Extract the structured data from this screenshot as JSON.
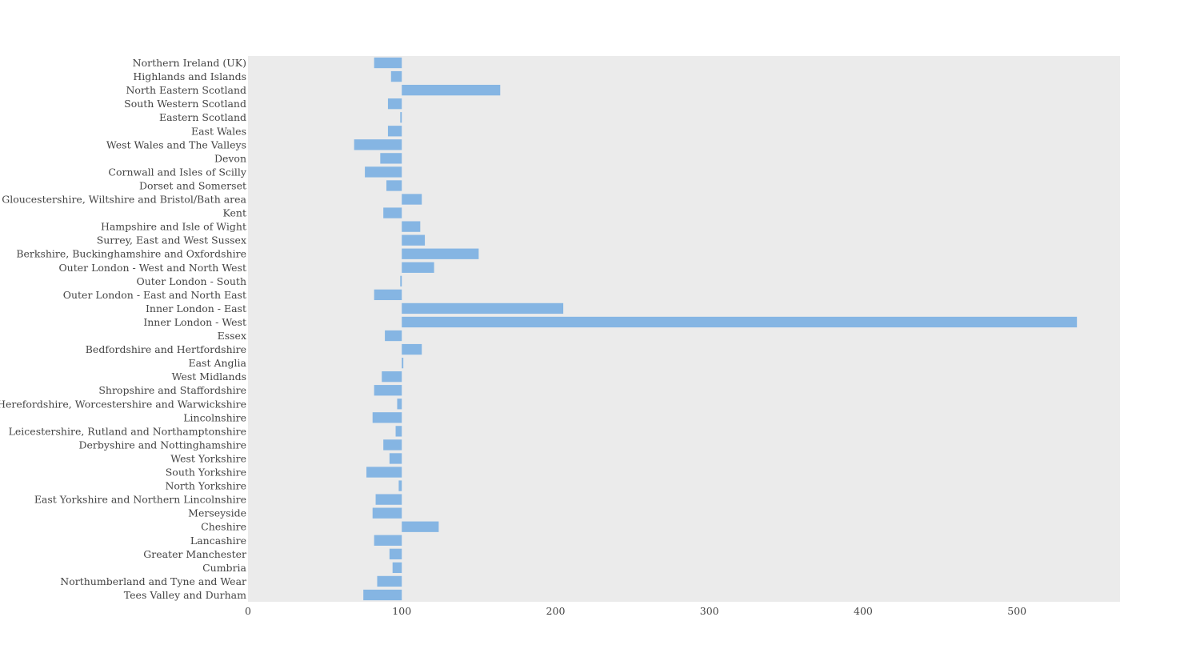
{
  "chart_data": {
    "type": "bar",
    "orientation": "horizontal",
    "title": "",
    "xlabel": "",
    "ylabel": "",
    "baseline": 100,
    "xlim": [
      0,
      567
    ],
    "xticks": [
      0,
      100,
      200,
      300,
      400,
      500
    ],
    "grid": false,
    "legend": "none",
    "colors": {
      "bar": "#85b5e3",
      "plot_background": "#ebebeb",
      "text": "#444444"
    },
    "categories": [
      "Northern Ireland (UK)",
      "Highlands and Islands",
      "North Eastern Scotland",
      "South Western Scotland",
      "Eastern Scotland",
      "East Wales",
      "West Wales and The Valleys",
      "Devon",
      "Cornwall and Isles of Scilly",
      "Dorset and Somerset",
      "Gloucestershire, Wiltshire and Bristol/Bath area",
      "Kent",
      "Hampshire and Isle of Wight",
      "Surrey, East and West Sussex",
      "Berkshire, Buckinghamshire and Oxfordshire",
      "Outer London - West and North West",
      "Outer London - South",
      "Outer London - East and North East",
      "Inner London - East",
      "Inner London - West",
      "Essex",
      "Bedfordshire and Hertfordshire",
      "East Anglia",
      "West Midlands",
      "Shropshire and Staffordshire",
      "Herefordshire, Worcestershire and Warwickshire",
      "Lincolnshire",
      "Leicestershire, Rutland and Northamptonshire",
      "Derbyshire and Nottinghamshire",
      "West Yorkshire",
      "South Yorkshire",
      "North Yorkshire",
      "East Yorkshire and Northern Lincolnshire",
      "Merseyside",
      "Cheshire",
      "Lancashire",
      "Greater Manchester",
      "Cumbria",
      "Northumberland and Tyne and Wear",
      "Tees Valley and Durham"
    ],
    "values": [
      82,
      93,
      164,
      91,
      99,
      91,
      69,
      86,
      76,
      90,
      113,
      88,
      112,
      115,
      150,
      121,
      99,
      82,
      205,
      539,
      89,
      113,
      101,
      87,
      82,
      97,
      81,
      96,
      88,
      92,
      77,
      98,
      83,
      81,
      124,
      82,
      92,
      94,
      84,
      75
    ]
  }
}
